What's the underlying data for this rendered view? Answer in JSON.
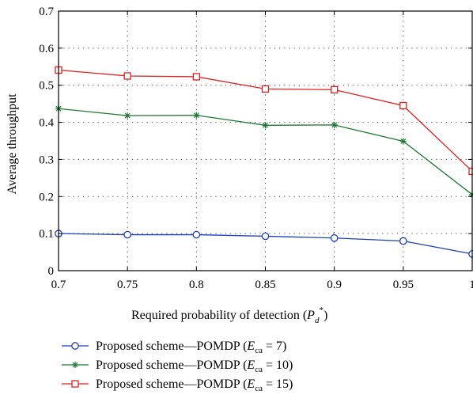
{
  "chart_data": {
    "type": "line",
    "xlabel": "Required probability of detection",
    "ylabel": "Average throughput",
    "x": [
      0.7,
      0.75,
      0.8,
      0.85,
      0.9,
      0.95,
      1
    ],
    "x_tick_labels": [
      "0.7",
      "0.75",
      "0.8",
      "0.85",
      "0.9",
      "0.95",
      "1"
    ],
    "y_tick_labels": [
      "0",
      "0.1",
      "0.2",
      "0.3",
      "0.4",
      "0.5",
      "0.6",
      "0.7"
    ],
    "xlim": [
      0.7,
      1.0
    ],
    "ylim": [
      0,
      0.7
    ],
    "grid": true,
    "legend_position": "below",
    "series": [
      {
        "name": "Proposed scheme—POMDP (E_ca = 7)",
        "legend_prefix": "Proposed scheme—POMDP (",
        "legend_value": " = 7)",
        "marker": "circle",
        "color": "#1f3fbf",
        "values": [
          0.1,
          0.097,
          0.097,
          0.093,
          0.088,
          0.08,
          0.045
        ]
      },
      {
        "name": "Proposed scheme—POMDP (E_ca = 10)",
        "legend_prefix": "Proposed scheme—POMDP (",
        "legend_value": " = 10)",
        "marker": "star",
        "color": "#1e7a32",
        "values": [
          0.437,
          0.418,
          0.419,
          0.392,
          0.393,
          0.349,
          0.205
        ]
      },
      {
        "name": "Proposed scheme—POMDP (E_ca = 15)",
        "legend_prefix": "Proposed scheme—POMDP (",
        "legend_value": " = 15)",
        "marker": "square",
        "color": "#e02020",
        "values": [
          0.541,
          0.525,
          0.523,
          0.49,
          0.488,
          0.445,
          0.268
        ]
      }
    ]
  }
}
